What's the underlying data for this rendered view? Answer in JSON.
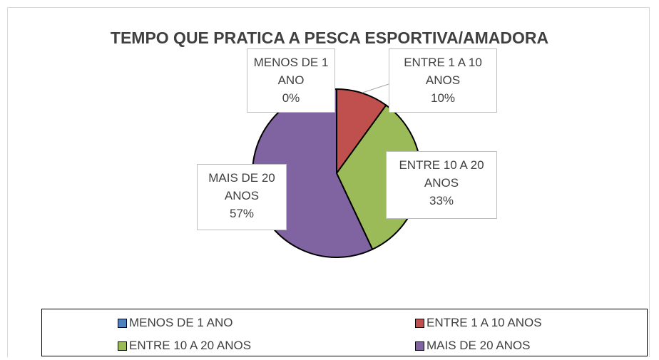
{
  "chart_data": {
    "type": "pie",
    "title": "TEMPO QUE PRATICA A PESCA ESPORTIVA/AMADORA",
    "categories": [
      "MENOS DE 1 ANO",
      "ENTRE 1 A 10 ANOS",
      "ENTRE 10 A 20 ANOS",
      "MAIS DE 20 ANOS"
    ],
    "values": [
      0,
      10,
      33,
      57
    ],
    "value_labels": [
      "0%",
      "10%",
      "33%",
      "57%"
    ],
    "colors": [
      "#4f81bd",
      "#c0504d",
      "#9bbb59",
      "#8064a2"
    ],
    "legend": "bottom"
  }
}
